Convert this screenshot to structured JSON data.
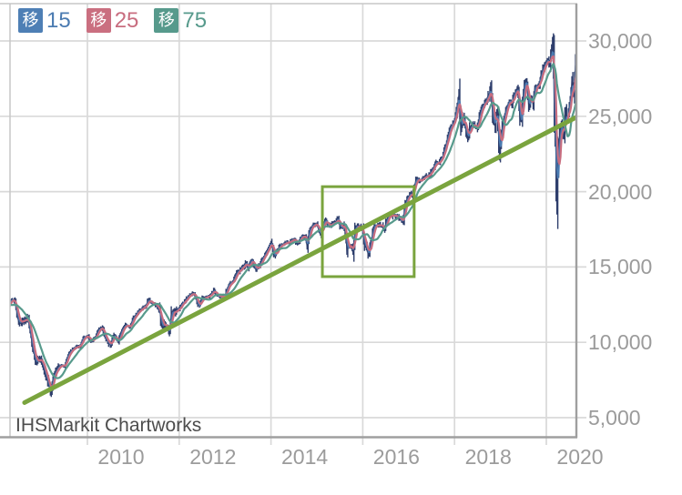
{
  "app": {
    "watermark": "IHSMarkit Chartworks"
  },
  "legend": {
    "items": [
      {
        "badge": "移",
        "label": "15",
        "badge_color": "#4e7fb5",
        "label_color": "#4b7bb1"
      },
      {
        "badge": "移",
        "label": "25",
        "badge_color": "#ca6f80",
        "label_color": "#c86d7f"
      },
      {
        "badge": "移",
        "label": "75",
        "badge_color": "#579a8c",
        "label_color": "#579a8c"
      }
    ]
  },
  "chart_data": {
    "type": "candlestick",
    "title": "",
    "instrument": "stock index price",
    "x_ticks": [
      2010,
      2012,
      2014,
      2016,
      2018,
      2020
    ],
    "x_tick_labels": [
      "2010",
      "2012",
      "2014",
      "2016",
      "2018",
      "2020"
    ],
    "y_ticks": [
      5000,
      10000,
      15000,
      20000,
      25000,
      30000
    ],
    "y_tick_labels": [
      "5,000",
      "10,000",
      "15,000",
      "20,000",
      "25,000",
      "30,000"
    ],
    "x_range": [
      2008.31,
      2020.66
    ],
    "y_range": [
      3730,
      32480
    ],
    "grid": true,
    "legend_position": "top-left",
    "axis_side": "right",
    "series": [
      {
        "name": "price",
        "type": "ohlc",
        "color": "#2e3e6c",
        "anchors": [
          [
            2007.7,
            13900
          ],
          [
            2007.83,
            13370
          ],
          [
            2007.92,
            13260
          ],
          [
            2008.0,
            13260
          ],
          [
            2008.08,
            12650
          ],
          [
            2008.17,
            12270
          ],
          [
            2008.25,
            12260
          ],
          [
            2008.33,
            12820
          ],
          [
            2008.42,
            12640
          ],
          [
            2008.5,
            11350
          ],
          [
            2008.58,
            11380
          ],
          [
            2008.67,
            11540
          ],
          [
            2008.71,
            11500
          ],
          [
            2008.75,
            10850
          ],
          [
            2008.79,
            9950
          ],
          [
            2008.83,
            9330
          ],
          [
            2008.88,
            8600
          ],
          [
            2008.92,
            8830
          ],
          [
            2009.0,
            8780
          ],
          [
            2009.08,
            8000
          ],
          [
            2009.17,
            7060
          ],
          [
            2009.2,
            6630
          ],
          [
            2009.25,
            7610
          ],
          [
            2009.33,
            8170
          ],
          [
            2009.42,
            8500
          ],
          [
            2009.5,
            8450
          ],
          [
            2009.58,
            9170
          ],
          [
            2009.67,
            9500
          ],
          [
            2009.75,
            9710
          ],
          [
            2009.83,
            9710
          ],
          [
            2009.92,
            10340
          ],
          [
            2010.0,
            10430
          ],
          [
            2010.08,
            10070
          ],
          [
            2010.17,
            10330
          ],
          [
            2010.25,
            10860
          ],
          [
            2010.33,
            11010
          ],
          [
            2010.37,
            10380
          ],
          [
            2010.42,
            10140
          ],
          [
            2010.5,
            9770
          ],
          [
            2010.54,
            10200
          ],
          [
            2010.58,
            10470
          ],
          [
            2010.67,
            10010
          ],
          [
            2010.75,
            10790
          ],
          [
            2010.83,
            11120
          ],
          [
            2010.92,
            11010
          ],
          [
            2011.0,
            11580
          ],
          [
            2011.08,
            11890
          ],
          [
            2011.17,
            12230
          ],
          [
            2011.25,
            12320
          ],
          [
            2011.33,
            12810
          ],
          [
            2011.42,
            12570
          ],
          [
            2011.5,
            12410
          ],
          [
            2011.58,
            12140
          ],
          [
            2011.62,
            10990
          ],
          [
            2011.67,
            11280
          ],
          [
            2011.75,
            10910
          ],
          [
            2011.79,
            10655
          ],
          [
            2011.83,
            11960
          ],
          [
            2011.92,
            12050
          ],
          [
            2012.0,
            12220
          ],
          [
            2012.08,
            12630
          ],
          [
            2012.17,
            12950
          ],
          [
            2012.25,
            13210
          ],
          [
            2012.33,
            13210
          ],
          [
            2012.42,
            12390
          ],
          [
            2012.5,
            12880
          ],
          [
            2012.58,
            13010
          ],
          [
            2012.67,
            13090
          ],
          [
            2012.75,
            13440
          ],
          [
            2012.83,
            13100
          ],
          [
            2012.92,
            13030
          ],
          [
            2013.0,
            13100
          ],
          [
            2013.08,
            13860
          ],
          [
            2013.17,
            14050
          ],
          [
            2013.25,
            14580
          ],
          [
            2013.33,
            14840
          ],
          [
            2013.42,
            15120
          ],
          [
            2013.46,
            15310
          ],
          [
            2013.5,
            14910
          ],
          [
            2013.58,
            15500
          ],
          [
            2013.67,
            14810
          ],
          [
            2013.75,
            15130
          ],
          [
            2013.83,
            15550
          ],
          [
            2013.92,
            16090
          ],
          [
            2014.0,
            16580
          ],
          [
            2014.08,
            15700
          ],
          [
            2014.17,
            16320
          ],
          [
            2014.25,
            16460
          ],
          [
            2014.33,
            16580
          ],
          [
            2014.42,
            16720
          ],
          [
            2014.5,
            16830
          ],
          [
            2014.58,
            16560
          ],
          [
            2014.67,
            17100
          ],
          [
            2014.75,
            17040
          ],
          [
            2014.79,
            16320
          ],
          [
            2014.83,
            17390
          ],
          [
            2014.92,
            17830
          ],
          [
            2015.0,
            17820
          ],
          [
            2015.08,
            17160
          ],
          [
            2015.17,
            18130
          ],
          [
            2015.25,
            17780
          ],
          [
            2015.33,
            17840
          ],
          [
            2015.42,
            18010
          ],
          [
            2015.46,
            18310
          ],
          [
            2015.5,
            17620
          ],
          [
            2015.58,
            17690
          ],
          [
            2015.63,
            17400
          ],
          [
            2015.655,
            15870
          ],
          [
            2015.67,
            16530
          ],
          [
            2015.75,
            16280
          ],
          [
            2015.79,
            16050
          ],
          [
            2015.83,
            17660
          ],
          [
            2015.92,
            17720
          ],
          [
            2016.0,
            17420
          ],
          [
            2016.04,
            16350
          ],
          [
            2016.08,
            16470
          ],
          [
            2016.12,
            15660
          ],
          [
            2016.17,
            16520
          ],
          [
            2016.25,
            17690
          ],
          [
            2016.33,
            17770
          ],
          [
            2016.42,
            17790
          ],
          [
            2016.48,
            17400
          ],
          [
            2016.5,
            17930
          ],
          [
            2016.58,
            18430
          ],
          [
            2016.67,
            18400
          ],
          [
            2016.75,
            18310
          ],
          [
            2016.83,
            18140
          ],
          [
            2016.87,
            17880
          ],
          [
            2016.92,
            19120
          ],
          [
            2017.0,
            19760
          ],
          [
            2017.08,
            19860
          ],
          [
            2017.17,
            20810
          ],
          [
            2017.25,
            20660
          ],
          [
            2017.33,
            20940
          ],
          [
            2017.42,
            21010
          ],
          [
            2017.5,
            21350
          ],
          [
            2017.58,
            21890
          ],
          [
            2017.67,
            21950
          ],
          [
            2017.75,
            22410
          ],
          [
            2017.83,
            23380
          ],
          [
            2017.92,
            24270
          ],
          [
            2018.0,
            24720
          ],
          [
            2018.08,
            26150
          ],
          [
            2018.1,
            26610
          ],
          [
            2018.14,
            23860
          ],
          [
            2018.17,
            25030
          ],
          [
            2018.21,
            24600
          ],
          [
            2018.25,
            24100
          ],
          [
            2018.29,
            23530
          ],
          [
            2018.33,
            24160
          ],
          [
            2018.42,
            24420
          ],
          [
            2018.5,
            24270
          ],
          [
            2018.58,
            25420
          ],
          [
            2018.67,
            25960
          ],
          [
            2018.75,
            26460
          ],
          [
            2018.79,
            26830
          ],
          [
            2018.83,
            25120
          ],
          [
            2018.88,
            24290
          ],
          [
            2018.92,
            25540
          ],
          [
            2018.96,
            23650
          ],
          [
            2018.985,
            21790
          ],
          [
            2019.0,
            23330
          ],
          [
            2019.08,
            25000
          ],
          [
            2019.17,
            25920
          ],
          [
            2019.25,
            25930
          ],
          [
            2019.33,
            26590
          ],
          [
            2019.38,
            26950
          ],
          [
            2019.42,
            24820
          ],
          [
            2019.46,
            24680
          ],
          [
            2019.5,
            26600
          ],
          [
            2019.54,
            27350
          ],
          [
            2019.58,
            26860
          ],
          [
            2019.62,
            25480
          ],
          [
            2019.67,
            26400
          ],
          [
            2019.71,
            25780
          ],
          [
            2019.75,
            26920
          ],
          [
            2019.83,
            27050
          ],
          [
            2019.92,
            28050
          ],
          [
            2020.0,
            28540
          ],
          [
            2020.04,
            28870
          ],
          [
            2020.08,
            28260
          ],
          [
            2020.115,
            29550
          ],
          [
            2020.15,
            29350
          ],
          [
            2020.17,
            25410
          ],
          [
            2020.2,
            23850
          ],
          [
            2020.23,
            18590
          ],
          [
            2020.25,
            21920
          ],
          [
            2020.29,
            23720
          ],
          [
            2020.33,
            24350
          ],
          [
            2020.38,
            23720
          ],
          [
            2020.42,
            25380
          ],
          [
            2020.46,
            24580
          ],
          [
            2020.5,
            25810
          ],
          [
            2020.54,
            26430
          ],
          [
            2020.56,
            27570
          ],
          [
            2020.6,
            26300
          ],
          [
            2020.63,
            28430
          ],
          [
            2020.655,
            29100
          ]
        ]
      },
      {
        "name": "MA15",
        "type": "line",
        "color": "#4b7bb1",
        "window_days": 15
      },
      {
        "name": "MA25",
        "type": "line",
        "color": "#c86d7f",
        "window_days": 25
      },
      {
        "name": "MA75",
        "type": "line",
        "color": "#579a8c",
        "window_days": 75
      }
    ],
    "trendline": {
      "color": "#7aa43e",
      "width": 5,
      "points": [
        [
          2008.63,
          6000
        ],
        [
          2020.66,
          24950
        ]
      ]
    },
    "highlight_box": {
      "color": "#7aa43e",
      "width": 3,
      "x": [
        2015.12,
        2017.12
      ],
      "y": [
        14360,
        20330
      ]
    }
  },
  "colors": {
    "grid": "#d9d9d9",
    "border_light": "#c7c7c7",
    "border_dark": "#9f9f9f",
    "axis_text": "#9b9b9b",
    "watermark_text": "#4d4d4d",
    "background": "#ffffff"
  }
}
